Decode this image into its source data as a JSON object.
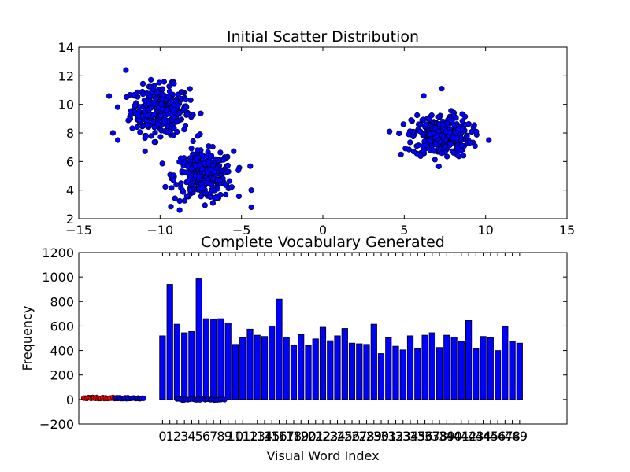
{
  "chart_data": [
    {
      "type": "scatter",
      "title": "Initial Scatter Distribution",
      "xlabel": "",
      "ylabel": "",
      "xlim": [
        -15,
        15
      ],
      "ylim": [
        2,
        14
      ],
      "xticks": [
        "−15",
        "−10",
        "−5",
        "0",
        "5",
        "10",
        "15"
      ],
      "yticks": [
        "2",
        "4",
        "6",
        "8",
        "10",
        "12",
        "14"
      ],
      "grid": false,
      "color": "#0000ff",
      "clusters": [
        {
          "center": [
            -10.0,
            9.6
          ],
          "spread": [
            0.9,
            0.85
          ],
          "count": 320
        },
        {
          "center": [
            -7.3,
            5.0
          ],
          "spread": [
            0.9,
            0.85
          ],
          "count": 300
        },
        {
          "center": [
            7.3,
            7.8
          ],
          "spread": [
            0.9,
            0.75
          ],
          "count": 300
        }
      ],
      "outliers": [
        {
          "x": -12.1,
          "y": 12.4
        },
        {
          "x": -12.9,
          "y": 8.0
        },
        {
          "x": -12.6,
          "y": 7.5
        },
        {
          "x": -5.8,
          "y": 5.3
        },
        {
          "x": -4.4,
          "y": 4.0
        },
        {
          "x": -4.4,
          "y": 2.8
        },
        {
          "x": -8.8,
          "y": 2.6
        },
        {
          "x": 4.1,
          "y": 8.1
        },
        {
          "x": 4.8,
          "y": 6.5
        },
        {
          "x": 10.2,
          "y": 7.5
        },
        {
          "x": 7.3,
          "y": 11.1
        },
        {
          "x": 6.2,
          "y": 10.6
        }
      ]
    },
    {
      "type": "bar",
      "title": "Complete Vocabulary Generated",
      "xlabel": "Visual Word Index",
      "ylabel": "Frequency",
      "ylim": [
        -200,
        1200
      ],
      "yticks": [
        "−200",
        "0",
        "200",
        "400",
        "600",
        "800",
        "1000",
        "1200"
      ],
      "xlim": [
        -11.5,
        55.5
      ],
      "grid": false,
      "color": "#0000ff",
      "categories": [
        "0",
        "1",
        "2",
        "3",
        "4",
        "5",
        "6",
        "7",
        "8",
        "9",
        "10",
        "11",
        "12",
        "13",
        "14",
        "15",
        "16",
        "17",
        "18",
        "19",
        "20",
        "21",
        "22",
        "23",
        "24",
        "25",
        "26",
        "27",
        "28",
        "29",
        "30",
        "31",
        "32",
        "33",
        "34",
        "35",
        "36",
        "37",
        "38",
        "39",
        "40",
        "41",
        "42",
        "43",
        "44",
        "45",
        "46",
        "47",
        "48",
        "49"
      ],
      "values": [
        520,
        940,
        615,
        545,
        555,
        985,
        660,
        655,
        660,
        625,
        450,
        505,
        575,
        525,
        515,
        600,
        820,
        510,
        440,
        530,
        440,
        495,
        590,
        480,
        520,
        580,
        460,
        455,
        450,
        615,
        375,
        505,
        435,
        405,
        520,
        415,
        525,
        545,
        425,
        525,
        510,
        475,
        645,
        415,
        515,
        505,
        400,
        595,
        475,
        460
      ],
      "marker_points": {
        "red": {
          "x_range": [
            -10.8,
            -6.2
          ],
          "y": 12,
          "count": 24
        },
        "blue": {
          "x_range": [
            -6.4,
            -2.6
          ],
          "y": 10,
          "count": 22
        },
        "black": {
          "x_range": [
            2,
            8.5
          ],
          "y": 0,
          "count": 28
        }
      }
    }
  ]
}
